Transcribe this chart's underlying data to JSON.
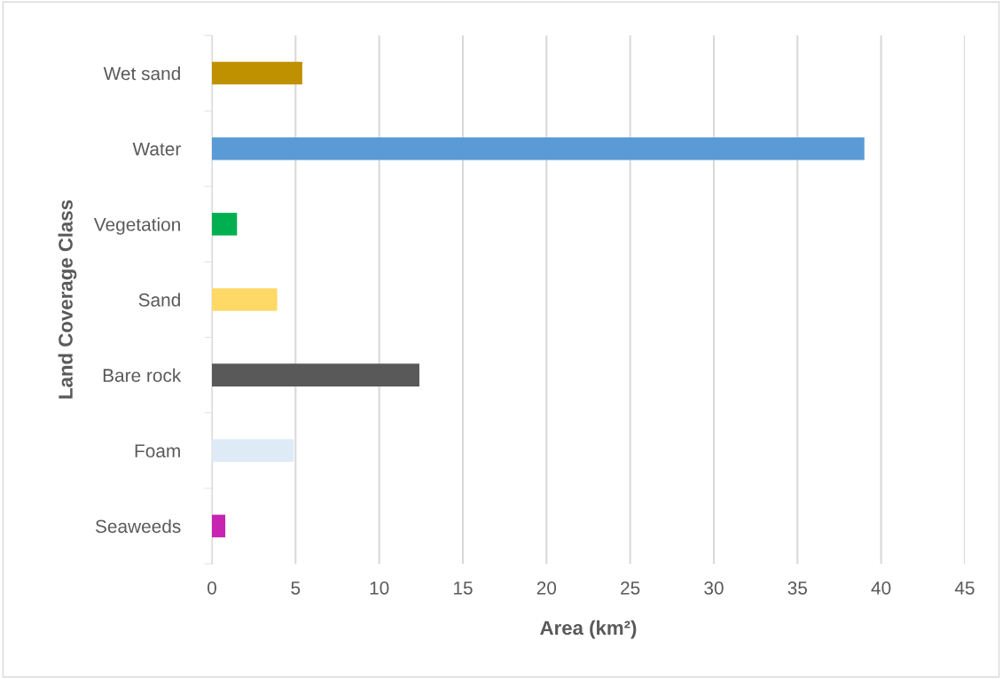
{
  "chart_data": {
    "type": "bar",
    "orientation": "horizontal",
    "xlabel": "Area (km²)",
    "ylabel": "Land Coverage Class",
    "categories": [
      "Wet sand",
      "Water",
      "Vegetation",
      "Sand",
      "Bare rock",
      "Foam",
      "Seaweeds"
    ],
    "values": [
      5.4,
      39.0,
      1.5,
      3.9,
      12.4,
      4.9,
      0.8
    ],
    "colors": [
      "#bf9000",
      "#5b9bd5",
      "#00b050",
      "#ffd966",
      "#595959",
      "#deebf7",
      "#c724b1"
    ],
    "xlim": [
      0,
      45
    ],
    "xticks": [
      0,
      5,
      10,
      15,
      20,
      25,
      30,
      35,
      40,
      45
    ],
    "grid": "x"
  }
}
